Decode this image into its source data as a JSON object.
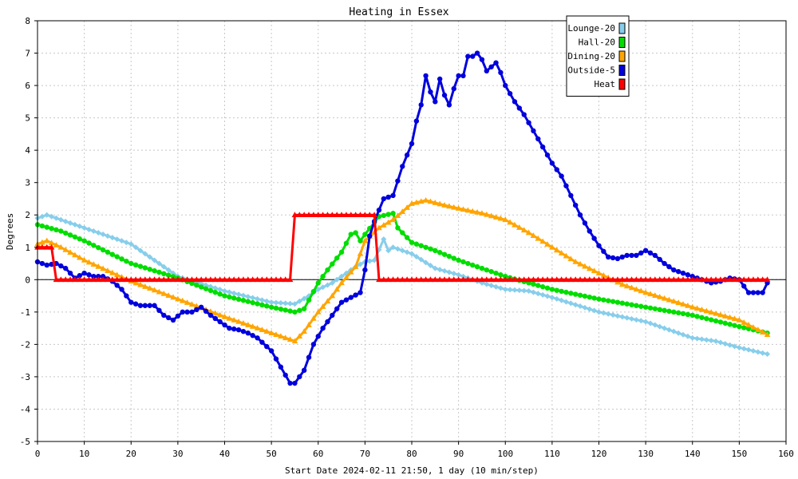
{
  "chart_data": {
    "type": "line",
    "title": "Heating in Essex",
    "xlabel": "Start Date 2024-02-11 21:50, 1 day (10 min/step)",
    "ylabel": "Degrees",
    "xlim": [
      0,
      160
    ],
    "ylim": [
      -5,
      8
    ],
    "xticks": [
      0,
      10,
      20,
      30,
      40,
      50,
      60,
      70,
      80,
      90,
      100,
      110,
      120,
      130,
      140,
      150,
      160
    ],
    "yticks": [
      -5,
      -4,
      -3,
      -2,
      -1,
      0,
      1,
      2,
      3,
      4,
      5,
      6,
      7,
      8
    ],
    "grid": true,
    "legend_position": "top-right",
    "series": [
      {
        "name": "Lounge-20",
        "color": "#87ceeb",
        "marker": "diamond",
        "points": [
          [
            0,
            1.9
          ],
          [
            2,
            2.0
          ],
          [
            5,
            1.85
          ],
          [
            10,
            1.6
          ],
          [
            20,
            1.1
          ],
          [
            30,
            0.1
          ],
          [
            40,
            -0.35
          ],
          [
            50,
            -0.7
          ],
          [
            55,
            -0.75
          ],
          [
            58,
            -0.5
          ],
          [
            60,
            -0.3
          ],
          [
            63,
            -0.1
          ],
          [
            65,
            0.1
          ],
          [
            68,
            0.4
          ],
          [
            70,
            0.55
          ],
          [
            72,
            0.6
          ],
          [
            74,
            1.25
          ],
          [
            75,
            0.9
          ],
          [
            76,
            1.0
          ],
          [
            80,
            0.8
          ],
          [
            85,
            0.35
          ],
          [
            90,
            0.15
          ],
          [
            95,
            -0.1
          ],
          [
            100,
            -0.3
          ],
          [
            105,
            -0.35
          ],
          [
            110,
            -0.55
          ],
          [
            120,
            -1.0
          ],
          [
            130,
            -1.3
          ],
          [
            140,
            -1.8
          ],
          [
            145,
            -1.9
          ],
          [
            150,
            -2.1
          ],
          [
            156,
            -2.3
          ]
        ]
      },
      {
        "name": "Hall-20",
        "color": "#00dd00",
        "marker": "circle",
        "points": [
          [
            0,
            1.7
          ],
          [
            5,
            1.5
          ],
          [
            10,
            1.2
          ],
          [
            20,
            0.5
          ],
          [
            30,
            0.05
          ],
          [
            40,
            -0.5
          ],
          [
            50,
            -0.85
          ],
          [
            55,
            -1.0
          ],
          [
            57,
            -0.9
          ],
          [
            60,
            -0.1
          ],
          [
            62,
            0.3
          ],
          [
            65,
            0.85
          ],
          [
            67,
            1.4
          ],
          [
            68,
            1.45
          ],
          [
            69,
            1.2
          ],
          [
            70,
            1.4
          ],
          [
            73,
            1.95
          ],
          [
            76,
            2.05
          ],
          [
            77,
            1.6
          ],
          [
            80,
            1.15
          ],
          [
            85,
            0.9
          ],
          [
            90,
            0.6
          ],
          [
            95,
            0.35
          ],
          [
            100,
            0.1
          ],
          [
            105,
            -0.1
          ],
          [
            110,
            -0.3
          ],
          [
            120,
            -0.6
          ],
          [
            130,
            -0.85
          ],
          [
            140,
            -1.1
          ],
          [
            150,
            -1.45
          ],
          [
            156,
            -1.65
          ]
        ]
      },
      {
        "name": "Dining-20",
        "color": "#ffa500",
        "marker": "triangle",
        "points": [
          [
            0,
            1.1
          ],
          [
            2,
            1.2
          ],
          [
            5,
            1.0
          ],
          [
            10,
            0.6
          ],
          [
            20,
            -0.05
          ],
          [
            30,
            -0.6
          ],
          [
            40,
            -1.15
          ],
          [
            50,
            -1.65
          ],
          [
            55,
            -1.9
          ],
          [
            57,
            -1.6
          ],
          [
            60,
            -1.0
          ],
          [
            63,
            -0.5
          ],
          [
            65,
            -0.1
          ],
          [
            68,
            0.4
          ],
          [
            70,
            1.2
          ],
          [
            73,
            1.6
          ],
          [
            76,
            1.85
          ],
          [
            78,
            2.1
          ],
          [
            80,
            2.35
          ],
          [
            83,
            2.45
          ],
          [
            87,
            2.3
          ],
          [
            90,
            2.2
          ],
          [
            95,
            2.05
          ],
          [
            100,
            1.85
          ],
          [
            105,
            1.45
          ],
          [
            110,
            1.0
          ],
          [
            115,
            0.55
          ],
          [
            120,
            0.2
          ],
          [
            125,
            -0.15
          ],
          [
            130,
            -0.4
          ],
          [
            140,
            -0.85
          ],
          [
            150,
            -1.25
          ],
          [
            156,
            -1.7
          ]
        ]
      },
      {
        "name": "Outside-5",
        "color": "#0000dd",
        "marker": "circle",
        "points": [
          [
            0,
            0.55
          ],
          [
            2,
            0.45
          ],
          [
            4,
            0.5
          ],
          [
            6,
            0.35
          ],
          [
            8,
            0.05
          ],
          [
            10,
            0.2
          ],
          [
            12,
            0.1
          ],
          [
            14,
            0.1
          ],
          [
            16,
            -0.05
          ],
          [
            18,
            -0.3
          ],
          [
            20,
            -0.7
          ],
          [
            22,
            -0.8
          ],
          [
            25,
            -0.8
          ],
          [
            27,
            -1.1
          ],
          [
            29,
            -1.25
          ],
          [
            31,
            -1.0
          ],
          [
            33,
            -1.0
          ],
          [
            35,
            -0.85
          ],
          [
            37,
            -1.1
          ],
          [
            39,
            -1.3
          ],
          [
            41,
            -1.5
          ],
          [
            43,
            -1.55
          ],
          [
            45,
            -1.65
          ],
          [
            47,
            -1.8
          ],
          [
            50,
            -2.2
          ],
          [
            52,
            -2.7
          ],
          [
            54,
            -3.2
          ],
          [
            55,
            -3.2
          ],
          [
            57,
            -2.8
          ],
          [
            59,
            -2.0
          ],
          [
            61,
            -1.5
          ],
          [
            63,
            -1.1
          ],
          [
            65,
            -0.7
          ],
          [
            67,
            -0.55
          ],
          [
            69,
            -0.4
          ],
          [
            70,
            0.3
          ],
          [
            71,
            1.35
          ],
          [
            72,
            1.8
          ],
          [
            74,
            2.5
          ],
          [
            76,
            2.6
          ],
          [
            78,
            3.5
          ],
          [
            80,
            4.2
          ],
          [
            81,
            4.9
          ],
          [
            82,
            5.4
          ],
          [
            83,
            6.3
          ],
          [
            84,
            5.8
          ],
          [
            85,
            5.5
          ],
          [
            86,
            6.2
          ],
          [
            87,
            5.7
          ],
          [
            88,
            5.4
          ],
          [
            89,
            5.9
          ],
          [
            90,
            6.3
          ],
          [
            91,
            6.3
          ],
          [
            92,
            6.9
          ],
          [
            93,
            6.9
          ],
          [
            94,
            7.0
          ],
          [
            95,
            6.8
          ],
          [
            96,
            6.45
          ],
          [
            98,
            6.7
          ],
          [
            99,
            6.4
          ],
          [
            100,
            6.0
          ],
          [
            102,
            5.5
          ],
          [
            104,
            5.1
          ],
          [
            106,
            4.6
          ],
          [
            108,
            4.1
          ],
          [
            110,
            3.6
          ],
          [
            112,
            3.2
          ],
          [
            114,
            2.6
          ],
          [
            116,
            2.0
          ],
          [
            118,
            1.5
          ],
          [
            120,
            1.05
          ],
          [
            122,
            0.7
          ],
          [
            124,
            0.65
          ],
          [
            126,
            0.75
          ],
          [
            128,
            0.75
          ],
          [
            130,
            0.9
          ],
          [
            132,
            0.75
          ],
          [
            134,
            0.5
          ],
          [
            136,
            0.3
          ],
          [
            138,
            0.2
          ],
          [
            140,
            0.1
          ],
          [
            142,
            0.0
          ],
          [
            144,
            -0.1
          ],
          [
            146,
            -0.05
          ],
          [
            148,
            0.05
          ],
          [
            150,
            0.0
          ],
          [
            152,
            -0.4
          ],
          [
            154,
            -0.4
          ],
          [
            155,
            -0.4
          ],
          [
            156,
            -0.1
          ]
        ]
      },
      {
        "name": "Heat",
        "color": "#ff0000",
        "marker": "triangle",
        "points": [
          [
            0,
            1.0
          ],
          [
            3,
            1.0
          ],
          [
            4,
            0.0
          ],
          [
            54,
            0.0
          ],
          [
            55,
            2.0
          ],
          [
            72,
            2.0
          ],
          [
            73,
            0.0
          ],
          [
            156,
            0.0
          ]
        ]
      }
    ]
  }
}
